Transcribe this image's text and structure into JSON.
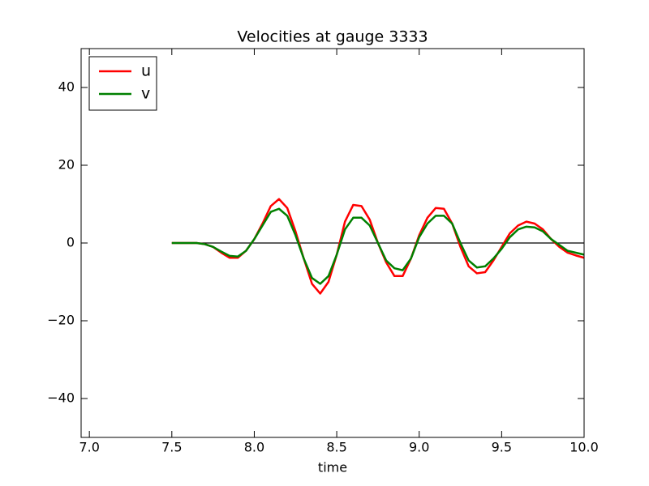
{
  "chart_data": {
    "type": "line",
    "title": "Velocities at gauge 3333",
    "x_label": "time",
    "x": [
      7.5,
      7.55,
      7.6,
      7.65,
      7.7,
      7.75,
      7.8,
      7.85,
      7.9,
      7.95,
      8.0,
      8.05,
      8.1,
      8.15,
      8.2,
      8.25,
      8.3,
      8.35,
      8.4,
      8.45,
      8.5,
      8.55,
      8.6,
      8.65,
      8.7,
      8.75,
      8.8,
      8.85,
      8.9,
      8.95,
      9.0,
      9.05,
      9.1,
      9.15,
      9.2,
      9.25,
      9.3,
      9.35,
      9.4,
      9.45,
      9.5,
      9.55,
      9.6,
      9.65,
      9.7,
      9.75,
      9.8,
      9.85,
      9.9,
      9.95,
      10.0
    ],
    "series": [
      {
        "name": "u",
        "color": "#ff0000",
        "values": [
          0,
          0,
          0,
          0,
          -0.3,
          -1,
          -2.5,
          -3.8,
          -3.8,
          -2,
          1,
          5,
          9.5,
          11.3,
          9,
          3,
          -4,
          -10.5,
          -13,
          -10,
          -3,
          5.5,
          9.8,
          9.5,
          6,
          0,
          -5,
          -8.5,
          -8.5,
          -4,
          2,
          6.5,
          9,
          8.8,
          5,
          -1,
          -6,
          -7.8,
          -7.5,
          -4.5,
          -1,
          2.5,
          4.5,
          5.5,
          5,
          3.5,
          1,
          -1,
          -2.5,
          -3.2,
          -3.8
        ]
      },
      {
        "name": "v",
        "color": "#008000",
        "values": [
          0,
          0,
          0,
          0,
          -0.3,
          -1,
          -2.2,
          -3.3,
          -3.5,
          -2,
          1,
          4.5,
          8,
          8.8,
          7,
          2,
          -4,
          -9,
          -10.5,
          -8.5,
          -3,
          3.5,
          6.5,
          6.5,
          4.5,
          0,
          -4.5,
          -6.5,
          -7,
          -4,
          1.5,
          5,
          7,
          7,
          5,
          0,
          -4.5,
          -6.3,
          -6,
          -4,
          -1.5,
          1.5,
          3.5,
          4.2,
          4,
          3,
          1,
          -0.5,
          -2,
          -2.5,
          -3
        ]
      }
    ],
    "reference_line": {
      "y": 0,
      "xmin": 7.5,
      "xmax": 10.0,
      "color": "#000000"
    },
    "xlim": [
      6.95,
      10.0
    ],
    "xticks": [
      {
        "value": 7,
        "label": "7.0"
      },
      {
        "value": 7.5,
        "label": "7.5"
      },
      {
        "value": 8,
        "label": "8.0"
      },
      {
        "value": 8.5,
        "label": "8.5"
      },
      {
        "value": 9,
        "label": "9.0"
      },
      {
        "value": 9.5,
        "label": "9.5"
      },
      {
        "value": 10,
        "label": "10.0"
      }
    ],
    "ylim": [
      -50,
      50
    ],
    "yticks": [
      {
        "value": -40,
        "label": "−40"
      },
      {
        "value": -20,
        "label": "−20"
      },
      0,
      20,
      40
    ],
    "legend": "upper left",
    "grid": false
  }
}
